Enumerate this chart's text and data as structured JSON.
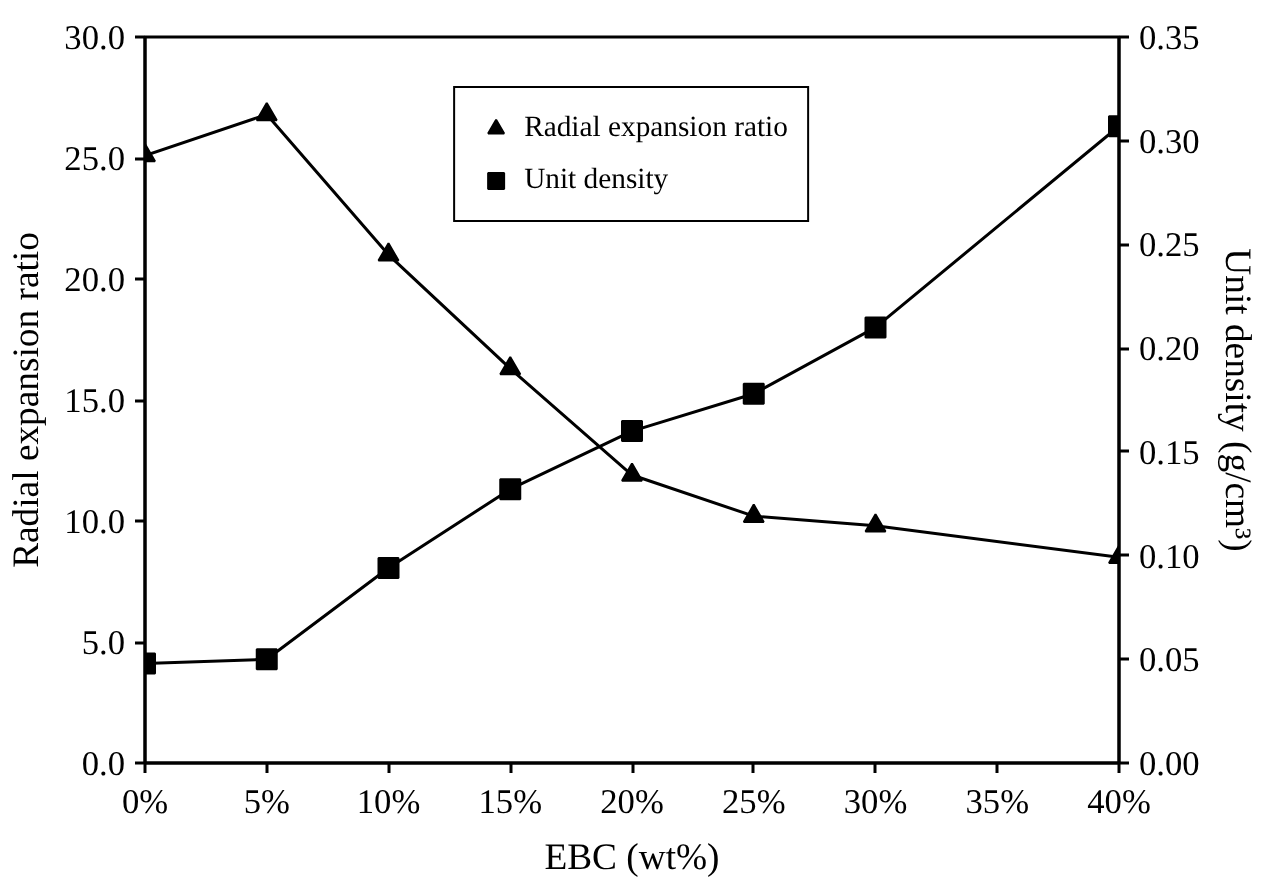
{
  "chart_data": {
    "type": "line",
    "xlabel": "EBC (wt%)",
    "ylabel": "Radial expansion ratio",
    "y2label": "Unit density (g/cm³)",
    "x": [
      0,
      5,
      10,
      15,
      20,
      25,
      30,
      40
    ],
    "series": [
      {
        "name": "Radial expansion ratio",
        "color": "#000000",
        "marker": "triangle",
        "values": [
          25.1,
          26.8,
          21.0,
          16.3,
          11.9,
          10.2,
          9.8,
          8.5
        ]
      },
      {
        "name": "Unit density",
        "color": "#000000",
        "marker": "square",
        "axis": "y2",
        "values": [
          0.048,
          0.05,
          0.094,
          0.132,
          0.16,
          0.178,
          0.21,
          0.307
        ]
      }
    ],
    "xlim": [
      0,
      40
    ],
    "xticks": [
      {
        "value": 0,
        "label": "0%"
      },
      {
        "value": 5,
        "label": "5%"
      },
      {
        "value": 10,
        "label": "10%"
      },
      {
        "value": 15,
        "label": "15%"
      },
      {
        "value": 20,
        "label": "20%"
      },
      {
        "value": 25,
        "label": "25%"
      },
      {
        "value": 30,
        "label": "30%"
      },
      {
        "value": 35,
        "label": "35%"
      },
      {
        "value": 40,
        "label": "40%"
      }
    ],
    "ylim": [
      0,
      30
    ],
    "yticks": [
      {
        "value": 0,
        "label": "0.0"
      },
      {
        "value": 5,
        "label": "5.0"
      },
      {
        "value": 10,
        "label": "10.0"
      },
      {
        "value": 15,
        "label": "15.0"
      },
      {
        "value": 20,
        "label": "20.0"
      },
      {
        "value": 25,
        "label": "25.0"
      },
      {
        "value": 30,
        "label": "30.0"
      }
    ],
    "y2lim": [
      0,
      0.35
    ],
    "y2ticks": [
      {
        "value": 0,
        "label": "0.00"
      },
      {
        "value": 0.05,
        "label": "0.05"
      },
      {
        "value": 0.1,
        "label": "0.10"
      },
      {
        "value": 0.15,
        "label": "0.15"
      },
      {
        "value": 0.2,
        "label": "0.20"
      },
      {
        "value": 0.25,
        "label": "0.25"
      },
      {
        "value": 0.3,
        "label": "0.30"
      },
      {
        "value": 0.35,
        "label": "0.35"
      }
    ],
    "grid": false,
    "legend": "top",
    "line_style": "solid"
  }
}
